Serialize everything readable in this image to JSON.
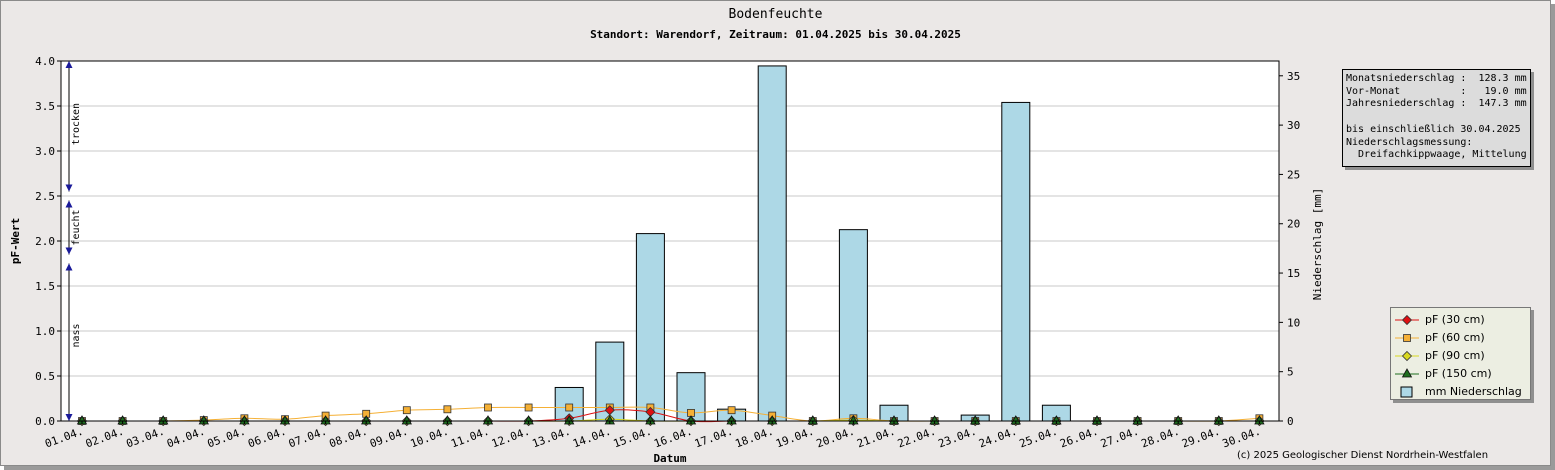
{
  "header": {
    "title": "Bodenfeuchte",
    "subtitle": "Standort: Warendorf, Zeitraum: 01.04.2025 bis 30.04.2025"
  },
  "stats": {
    "lines": [
      "Monatsniederschlag :  128.3 mm",
      "Vor-Monat          :   19.0 mm",
      "Jahresniederschlag :  147.3 mm",
      "",
      "bis einschließlich 30.04.2025",
      "Niederschlagsmessung:",
      "  Dreifachkippwaage, Mittelung"
    ]
  },
  "zones": [
    "trocken",
    "feucht",
    "nass"
  ],
  "legend": [
    {
      "label": "pF (30 cm)",
      "color": "#dd1111",
      "marker": "diamond"
    },
    {
      "label": "pF (60 cm)",
      "color": "#f5b035",
      "marker": "square"
    },
    {
      "label": "pF (90 cm)",
      "color": "#d8d820",
      "marker": "diamond"
    },
    {
      "label": "pF (150 cm)",
      "color": "#1e6e1e",
      "marker": "triangle"
    },
    {
      "label": "mm  Niederschlag",
      "color": "#add8e6",
      "marker": "bar"
    }
  ],
  "copyright": "(c) 2025 Geologischer Dienst Nordrhein-Westfalen",
  "chart_data": {
    "type": "bar",
    "xlabel": "Datum",
    "ylabel": "pF-Wert",
    "y2label": "Niederschlag [mm]",
    "ylim": [
      0,
      4.0
    ],
    "y2lim": [
      0,
      36.5
    ],
    "yticks": [
      "0.0",
      "0.5",
      "1.0",
      "1.5",
      "2.0",
      "2.5",
      "3.0",
      "3.5",
      "4.0"
    ],
    "y2ticks": [
      "0",
      "5",
      "10",
      "15",
      "20",
      "25",
      "30",
      "35"
    ],
    "grid": true,
    "categories": [
      "01.04.",
      "02.04.",
      "03.04.",
      "04.04.",
      "05.04.",
      "06.04.",
      "07.04.",
      "08.04.",
      "09.04.",
      "10.04.",
      "11.04.",
      "12.04.",
      "13.04.",
      "14.04.",
      "15.04.",
      "16.04.",
      "17.04.",
      "18.04.",
      "19.04.",
      "20.04.",
      "21.04.",
      "22.04.",
      "23.04.",
      "24.04.",
      "25.04.",
      "26.04.",
      "27.04.",
      "28.04.",
      "29.04.",
      "30.04."
    ],
    "series": [
      {
        "name": "mm  Niederschlag",
        "axis": "right",
        "kind": "bar",
        "values": [
          0,
          0,
          0,
          0,
          0,
          0,
          0,
          0,
          0,
          0,
          0,
          0,
          3.4,
          8.0,
          19.0,
          4.9,
          1.2,
          36.0,
          0,
          19.4,
          1.6,
          0,
          0.6,
          32.3,
          1.6,
          0,
          0,
          0,
          0,
          0
        ]
      },
      {
        "name": "pF (30 cm)",
        "axis": "left",
        "kind": "line",
        "values": [
          0,
          0,
          0,
          0,
          0,
          0,
          0,
          0,
          0,
          0,
          0,
          0,
          0.03,
          0.12,
          0.1,
          0,
          0,
          0,
          0,
          0,
          0,
          0,
          0,
          0,
          0,
          0,
          0,
          0,
          0,
          0
        ]
      },
      {
        "name": "pF (60 cm)",
        "axis": "left",
        "kind": "line",
        "values": [
          0,
          0,
          0,
          0.01,
          0.03,
          0.02,
          0.06,
          0.08,
          0.12,
          0.13,
          0.15,
          0.15,
          0.15,
          0.15,
          0.15,
          0.09,
          0.12,
          0.06,
          0,
          0.03,
          0,
          0,
          0,
          0,
          0,
          0,
          0,
          0,
          0,
          0.03
        ]
      },
      {
        "name": "pF (90 cm)",
        "axis": "left",
        "kind": "line",
        "values": [
          0,
          0,
          0,
          0,
          0,
          0,
          0,
          0,
          0,
          0,
          0,
          0,
          0,
          0.02,
          0,
          0,
          0,
          0,
          0,
          0.01,
          0,
          0,
          0,
          0,
          0,
          0,
          0,
          0,
          0,
          0
        ]
      },
      {
        "name": "pF (150 cm)",
        "axis": "left",
        "kind": "line",
        "values": [
          0,
          0,
          0,
          0,
          0,
          0,
          0,
          0,
          0,
          0,
          0,
          0,
          0,
          0,
          0,
          0,
          0,
          0,
          0,
          0,
          0,
          0,
          0,
          0,
          0,
          0,
          0,
          0,
          0,
          0
        ]
      }
    ]
  }
}
